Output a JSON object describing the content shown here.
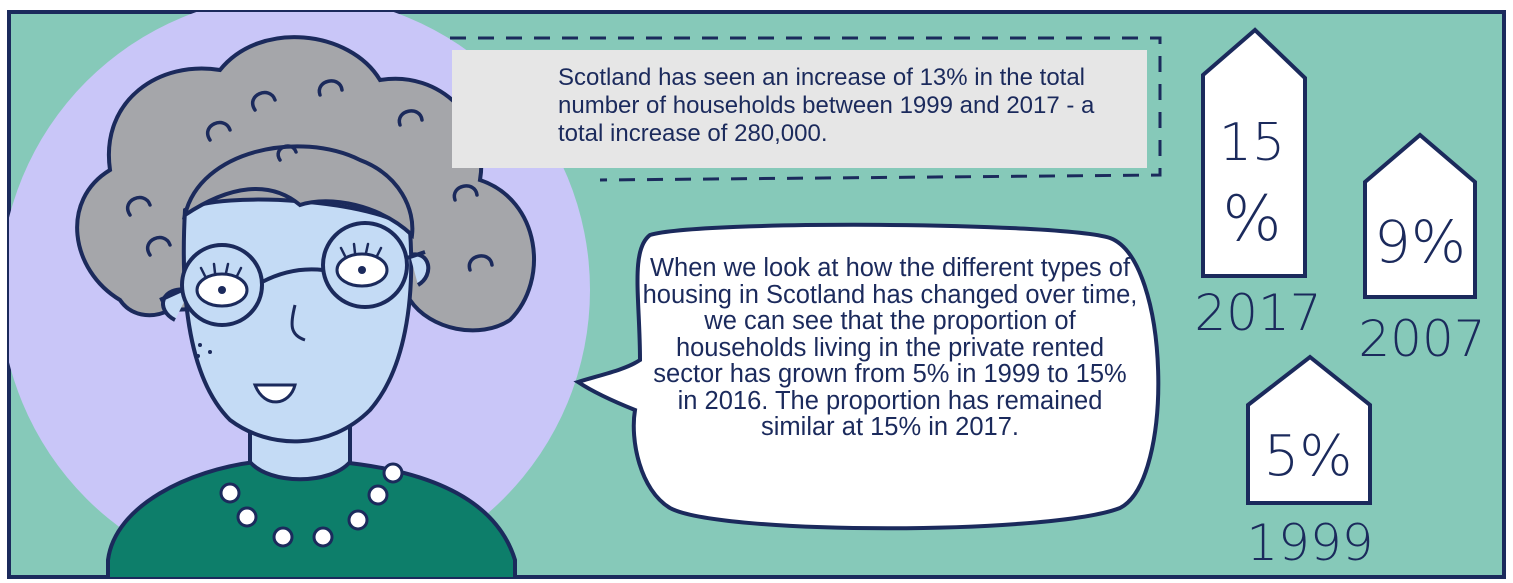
{
  "info_box": {
    "text": "Scotland has seen an increase of 13% in the total number of households between 1999 and 2017 - a total increase of 280,000."
  },
  "speech_bubble": {
    "text": "When we look at how the different types of housing in Scotland has changed over time, we can see that the proportion of households living in the private rented sector has grown from 5% in 1999 to 15% in 2016. The proportion has remained similar at 15% in 2017."
  },
  "houses": [
    {
      "year": "2017",
      "value": "15 %",
      "value_line1": "15",
      "value_line2": "%"
    },
    {
      "year": "2007",
      "value": "9%"
    },
    {
      "year": "1999",
      "value": "5%"
    }
  ],
  "colors": {
    "background": "#86c9b9",
    "frame": "#1b2a5c",
    "portrait_circle": "#c9c6f8",
    "hair": "#a5a6aa",
    "skin": "#c4dbf5",
    "sweater": "#0d7e6a",
    "info_box": "#e6e6e6"
  }
}
